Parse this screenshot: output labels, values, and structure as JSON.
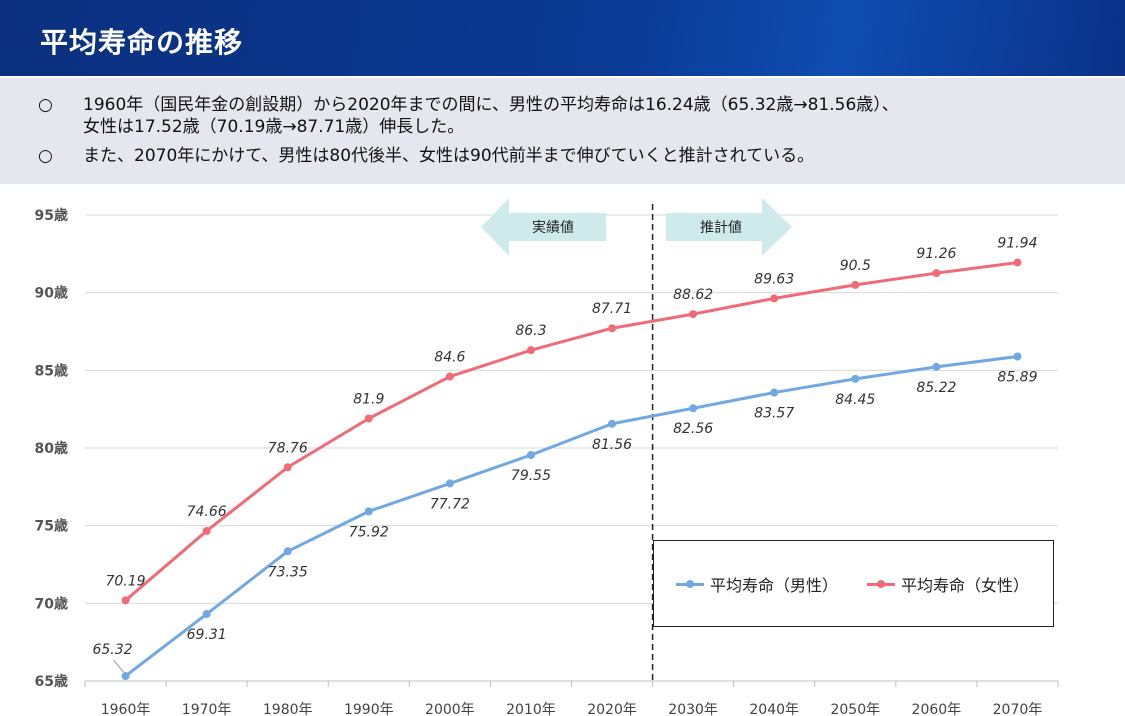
{
  "header": {
    "title": "平均寿命の推移"
  },
  "summary": {
    "bullets": [
      {
        "mark": "○",
        "line1": "1960年（国民年金の創設期）から2020年までの間に、男性の平均寿命は16.24歳（65.32歳→81.56歳）、",
        "line2": "女性は17.52歳（70.19歳→87.71歳）伸長した。"
      },
      {
        "mark": "○",
        "line1": "また、2070年にかけて、男性は80代後半、女性は90代前半まで伸びていくと推計されている。"
      }
    ]
  },
  "colors": {
    "male": "#6fa8e2",
    "female": "#f06b77",
    "arrow": "#cfeaea",
    "header": "#0b3a8e"
  },
  "chart_data": {
    "type": "line",
    "categories": [
      "1960年",
      "1970年",
      "1980年",
      "1990年",
      "2000年",
      "2010年",
      "2020年",
      "2030年",
      "2040年",
      "2050年",
      "2060年",
      "2070年"
    ],
    "series": [
      {
        "name": "平均寿命（男性）",
        "values": [
          65.32,
          69.31,
          73.35,
          75.92,
          77.72,
          79.55,
          81.56,
          82.56,
          83.57,
          84.45,
          85.22,
          85.89
        ]
      },
      {
        "name": "平均寿命（女性）",
        "values": [
          70.19,
          74.66,
          78.76,
          81.9,
          84.6,
          86.3,
          87.71,
          88.62,
          89.63,
          90.5,
          91.26,
          91.94
        ]
      }
    ],
    "ylim": [
      65,
      95
    ],
    "yticks": [
      {
        "value": 65,
        "label": "65歳"
      },
      {
        "value": 70,
        "label": "70歳"
      },
      {
        "value": 75,
        "label": "75歳"
      },
      {
        "value": 80,
        "label": "80歳"
      },
      {
        "value": 85,
        "label": "85歳"
      },
      {
        "value": 90,
        "label": "90歳"
      },
      {
        "value": 95,
        "label": "95歳"
      }
    ],
    "data_labels": {
      "male": [
        "65.32",
        "69.31",
        "73.35",
        "75.92",
        "77.72",
        "79.55",
        "81.56",
        "82.56",
        "83.57",
        "84.45",
        "85.22",
        "85.89"
      ],
      "female": [
        "70.19",
        "74.66",
        "78.76",
        "81.9",
        "84.6",
        "86.3",
        "87.71",
        "88.62",
        "89.63",
        "90.5",
        "91.26",
        "91.94"
      ]
    },
    "annotations": {
      "actual": "実績値",
      "projected": "推計値"
    },
    "grid": true,
    "legend_position": "bottom-right"
  }
}
